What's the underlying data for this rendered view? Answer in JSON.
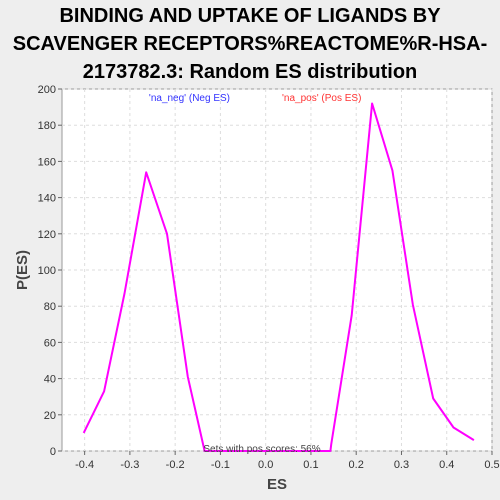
{
  "chart_data": {
    "type": "line",
    "title_lines": [
      "BINDING AND UPTAKE OF LIGANDS BY",
      "SCAVENGER RECEPTORS%REACTOME%R-HSA-",
      "2173782.3: Random ES distribution"
    ],
    "xlabel": "ES",
    "ylabel": "P(ES)",
    "xlim": [
      -0.45,
      0.5
    ],
    "ylim": [
      0,
      200
    ],
    "x_ticks": [
      -0.4,
      -0.3,
      -0.2,
      -0.1,
      0.0,
      0.1,
      0.2,
      0.3,
      0.4,
      0.5
    ],
    "x_tick_labels": [
      "-0.4",
      "-0.3",
      "-0.2",
      "-0.1",
      "0.0",
      "0.1",
      "0.2",
      "0.3",
      "0.4",
      "0.5"
    ],
    "y_ticks": [
      0,
      20,
      40,
      60,
      80,
      100,
      120,
      140,
      160,
      180,
      200
    ],
    "grid": true,
    "legend": {
      "placement": "top-center",
      "entries": [
        {
          "label": "'na_neg' (Neg ES)",
          "color": "#3333ff"
        },
        {
          "label": "'na_pos' (Pos ES)",
          "color": "#ff3333"
        }
      ]
    },
    "annotation": "Sets with pos scores: 56%",
    "series": [
      {
        "color": "#ff00ff",
        "points": [
          [
            -0.402,
            10
          ],
          [
            -0.357,
            33
          ],
          [
            -0.312,
            87
          ],
          [
            -0.264,
            154
          ],
          [
            -0.218,
            120
          ],
          [
            -0.172,
            41
          ],
          [
            -0.135,
            0
          ],
          [
            0.143,
            0
          ],
          [
            0.145,
            4
          ],
          [
            0.19,
            75
          ],
          [
            0.235,
            192
          ],
          [
            0.28,
            155
          ],
          [
            0.325,
            81
          ],
          [
            0.37,
            29
          ],
          [
            0.415,
            13
          ],
          [
            0.46,
            6
          ]
        ]
      }
    ]
  },
  "colors": {
    "background": "#eeeeee",
    "plot_background": "#ffffff",
    "grid": "#dddddd",
    "line": "#ff00ff"
  }
}
